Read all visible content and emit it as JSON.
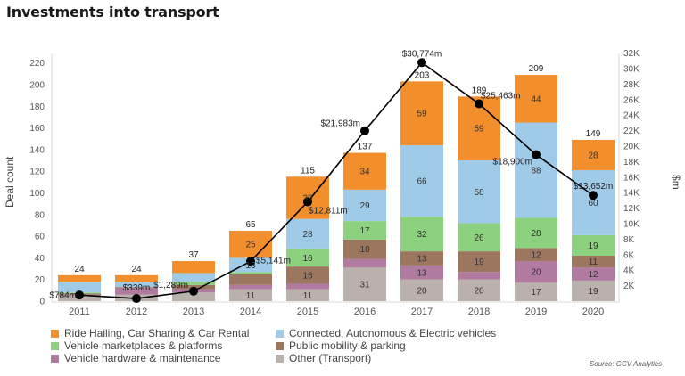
{
  "title": "Investments into transport",
  "source": "Source: GCV Analytics",
  "chart_data": {
    "type": "bar",
    "subtype": "stacked-bar-with-line",
    "title": "Investments into transport",
    "xlabel": "",
    "ylabel": "Deal count",
    "y2label": "$m",
    "ylim": [
      0,
      220
    ],
    "y2lim": [
      0,
      32000
    ],
    "yticks": [
      "0",
      "20",
      "40",
      "60",
      "80",
      "100",
      "120",
      "140",
      "160",
      "180",
      "200",
      "220"
    ],
    "y2ticks": [
      "2K",
      "4K",
      "6K",
      "8K",
      "10K",
      "12K",
      "14K",
      "16K",
      "18K",
      "20K",
      "22K",
      "24K",
      "26K",
      "28K",
      "30K",
      "32K"
    ],
    "grid": false,
    "legend_position": "bottom",
    "categories": [
      "2011",
      "2012",
      "2013",
      "2014",
      "2015",
      "2016",
      "2017",
      "2018",
      "2019",
      "2020"
    ],
    "series": [
      {
        "name": "Other (Transport)",
        "color": "#BAB0AC",
        "values": [
          5,
          6,
          8,
          11,
          11,
          31,
          20,
          20,
          17,
          19
        ],
        "labels": [
          "",
          "",
          "",
          "11",
          "11",
          "31",
          "20",
          "20",
          "17",
          "19"
        ]
      },
      {
        "name": "Vehicle hardware & maintenance",
        "color": "#B07AA1",
        "values": [
          1,
          6,
          3,
          4,
          5,
          8,
          13,
          7,
          20,
          12
        ],
        "labels": [
          "",
          "",
          "",
          "",
          "",
          "",
          "13",
          "",
          "20",
          "12"
        ]
      },
      {
        "name": "Public mobility & parking",
        "color": "#9D7660",
        "values": [
          1,
          1,
          4,
          10,
          16,
          18,
          13,
          19,
          12,
          11
        ],
        "labels": [
          "",
          "",
          "",
          "",
          "16",
          "18",
          "13",
          "19",
          "12",
          "11"
        ]
      },
      {
        "name": "Vehicle marketplaces & platforms",
        "color": "#8CD17D",
        "values": [
          1,
          0,
          3,
          2,
          16,
          17,
          32,
          26,
          28,
          19
        ],
        "labels": [
          "",
          "",
          "",
          "",
          "16",
          "17",
          "32",
          "26",
          "28",
          "19"
        ]
      },
      {
        "name": "Connected, Autonomous & Electric vehicles",
        "color": "#A0CBE8",
        "values": [
          10,
          5,
          8,
          13,
          28,
          29,
          66,
          58,
          88,
          60
        ],
        "labels": [
          "",
          "",
          "",
          "13",
          "28",
          "29",
          "66",
          "58",
          "88",
          "60"
        ]
      },
      {
        "name": "Ride Hailing, Car Sharing & Car Rental",
        "color": "#F28E2B",
        "values": [
          6,
          6,
          11,
          25,
          39,
          34,
          59,
          59,
          44,
          28
        ],
        "labels": [
          "",
          "",
          "",
          "25",
          "39",
          "34",
          "59",
          "59",
          "44",
          "28"
        ]
      }
    ],
    "totals": [
      24,
      24,
      37,
      65,
      115,
      137,
      203,
      189,
      209,
      149
    ],
    "line": {
      "name": "Investment ($m)",
      "color": "#000000",
      "axis": "right",
      "values": [
        784,
        339,
        1289,
        5141,
        12811,
        21983,
        30774,
        25463,
        18900,
        13652
      ],
      "labels": [
        "$784m",
        "$339m",
        "$1,289m",
        "$5,141m",
        "$12,811m",
        "$21,983m",
        "$30,774m",
        "$25,463m",
        "$18,900m",
        "$13,652m"
      ],
      "label_side": [
        "left",
        "above",
        "left",
        "right",
        "right-below",
        "left-above",
        "above",
        "right-above",
        "left-below",
        "above"
      ]
    }
  },
  "legend": [
    {
      "label": "Ride Hailing, Car Sharing & Car Rental",
      "color": "#F28E2B"
    },
    {
      "label": "Connected, Autonomous & Electric vehicles",
      "color": "#A0CBE8"
    },
    {
      "label": "Vehicle marketplaces & platforms",
      "color": "#8CD17D"
    },
    {
      "label": "Public mobility & parking",
      "color": "#9D7660"
    },
    {
      "label": "Vehicle hardware & maintenance",
      "color": "#B07AA1"
    },
    {
      "label": "Other (Transport)",
      "color": "#BAB0AC"
    }
  ]
}
